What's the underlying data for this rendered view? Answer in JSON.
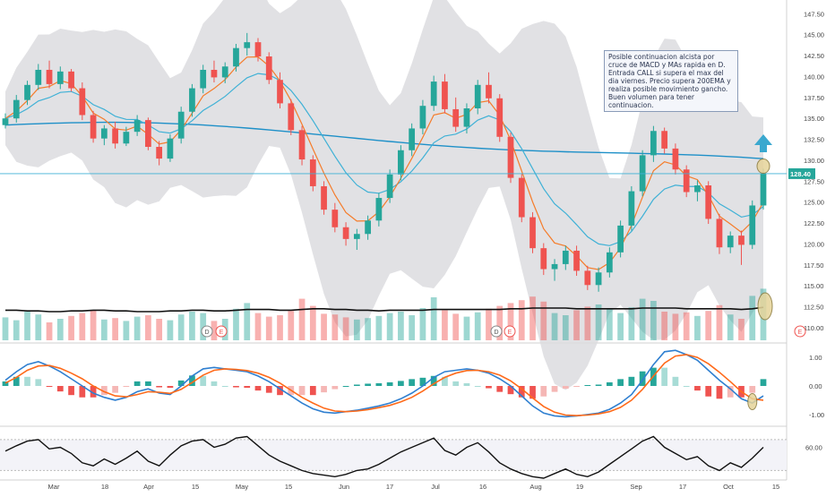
{
  "chart_data": {
    "type": "candlestick",
    "price_axis": {
      "ticks": [
        "147.50",
        "145.00",
        "142.50",
        "140.00",
        "137.50",
        "135.00",
        "132.50",
        "130.00",
        "127.50",
        "125.00",
        "122.50",
        "120.00",
        "117.50",
        "115.00",
        "112.50",
        "110.00"
      ],
      "ylim": [
        108.5,
        148.5
      ]
    },
    "last_price_label": "128.40",
    "last_price": 128.4,
    "x_labels": [
      "Mar",
      "18",
      "Apr",
      "15",
      "May",
      "15",
      "Jun",
      "17",
      "Jul",
      "16",
      "Aug",
      "19",
      "Sep",
      "17",
      "Oct",
      "15"
    ],
    "event_markers": [
      "D",
      "E",
      "D",
      "E",
      "E"
    ],
    "candles": [
      [
        134.2,
        135.6,
        133.8,
        135.0
      ],
      [
        135.0,
        137.8,
        134.5,
        137.2
      ],
      [
        137.2,
        139.5,
        136.6,
        139.0
      ],
      [
        139.0,
        141.5,
        138.4,
        140.8
      ],
      [
        140.8,
        141.9,
        138.6,
        139.1
      ],
      [
        139.1,
        141.2,
        138.5,
        140.6
      ],
      [
        140.6,
        140.9,
        138.2,
        138.6
      ],
      [
        138.6,
        139.3,
        134.8,
        135.4
      ],
      [
        135.4,
        135.9,
        132.1,
        132.6
      ],
      [
        132.6,
        134.2,
        131.8,
        133.8
      ],
      [
        133.8,
        134.6,
        131.4,
        132.0
      ],
      [
        132.0,
        134.0,
        131.7,
        133.4
      ],
      [
        133.4,
        135.4,
        132.9,
        134.8
      ],
      [
        134.8,
        135.1,
        131.2,
        131.6
      ],
      [
        131.6,
        132.3,
        129.4,
        130.2
      ],
      [
        130.2,
        133.1,
        129.8,
        132.6
      ],
      [
        132.6,
        136.4,
        132.0,
        135.8
      ],
      [
        135.8,
        139.1,
        135.2,
        138.6
      ],
      [
        138.6,
        141.4,
        138.0,
        140.8
      ],
      [
        140.8,
        141.9,
        139.3,
        139.9
      ],
      [
        139.9,
        141.7,
        139.2,
        141.2
      ],
      [
        141.2,
        143.9,
        140.6,
        143.4
      ],
      [
        143.4,
        145.2,
        142.5,
        144.1
      ],
      [
        144.1,
        144.6,
        141.8,
        142.4
      ],
      [
        142.4,
        142.9,
        139.1,
        139.6
      ],
      [
        139.6,
        140.5,
        136.2,
        136.8
      ],
      [
        136.8,
        137.3,
        133.0,
        133.6
      ],
      [
        133.6,
        134.1,
        129.4,
        130.1
      ],
      [
        130.1,
        130.6,
        126.3,
        126.9
      ],
      [
        126.9,
        127.5,
        123.5,
        124.1
      ],
      [
        124.1,
        124.9,
        121.4,
        122.0
      ],
      [
        122.0,
        122.6,
        119.8,
        120.6
      ],
      [
        120.6,
        121.8,
        119.3,
        121.2
      ],
      [
        121.2,
        123.4,
        120.5,
        122.8
      ],
      [
        122.8,
        126.1,
        122.1,
        125.5
      ],
      [
        125.5,
        128.9,
        124.9,
        128.3
      ],
      [
        128.3,
        131.8,
        127.6,
        131.2
      ],
      [
        131.2,
        134.4,
        130.5,
        133.8
      ],
      [
        133.8,
        137.2,
        133.1,
        136.5
      ],
      [
        136.5,
        140.1,
        135.9,
        139.4
      ],
      [
        139.4,
        140.3,
        135.6,
        136.1
      ],
      [
        136.1,
        137.5,
        133.4,
        134.0
      ],
      [
        134.0,
        136.8,
        133.2,
        136.2
      ],
      [
        136.2,
        139.6,
        135.5,
        139.0
      ],
      [
        139.0,
        140.5,
        136.8,
        137.4
      ],
      [
        137.4,
        137.9,
        132.2,
        132.8
      ],
      [
        132.8,
        133.3,
        127.3,
        127.9
      ],
      [
        127.9,
        128.4,
        122.6,
        123.2
      ],
      [
        123.2,
        123.8,
        118.9,
        119.5
      ],
      [
        119.5,
        120.1,
        116.3,
        117.0
      ],
      [
        117.0,
        118.2,
        115.6,
        117.6
      ],
      [
        117.6,
        119.8,
        116.9,
        119.2
      ],
      [
        119.2,
        119.8,
        116.2,
        116.8
      ],
      [
        116.8,
        117.4,
        114.5,
        115.1
      ],
      [
        115.1,
        117.2,
        114.3,
        116.6
      ],
      [
        116.6,
        119.6,
        116.0,
        119.0
      ],
      [
        119.0,
        122.8,
        118.4,
        122.2
      ],
      [
        122.2,
        126.9,
        121.6,
        126.3
      ],
      [
        126.3,
        131.2,
        125.7,
        130.6
      ],
      [
        130.6,
        134.1,
        129.8,
        133.5
      ],
      [
        133.5,
        133.9,
        130.8,
        131.4
      ],
      [
        131.4,
        132.0,
        128.3,
        128.9
      ],
      [
        128.9,
        129.4,
        125.6,
        126.2
      ],
      [
        126.2,
        127.6,
        125.1,
        127.0
      ],
      [
        127.0,
        127.5,
        122.4,
        123.0
      ],
      [
        123.0,
        123.6,
        118.8,
        119.6
      ],
      [
        119.6,
        121.5,
        118.9,
        121.0
      ],
      [
        121.0,
        121.6,
        117.5,
        119.9
      ],
      [
        119.9,
        125.2,
        119.4,
        124.6
      ],
      [
        124.6,
        129.0,
        124.1,
        128.4
      ]
    ],
    "volume_ylim": [
      0,
      100
    ],
    "volume": [
      32,
      28,
      40,
      36,
      25,
      30,
      34,
      38,
      42,
      29,
      31,
      27,
      33,
      35,
      30,
      28,
      36,
      40,
      38,
      27,
      30,
      44,
      52,
      38,
      33,
      35,
      41,
      58,
      48,
      37,
      36,
      32,
      29,
      31,
      34,
      38,
      40,
      35,
      45,
      60,
      42,
      37,
      33,
      39,
      44,
      48,
      52,
      56,
      61,
      54,
      38,
      35,
      42,
      47,
      50,
      44,
      38,
      46,
      58,
      55,
      40,
      37,
      39,
      34,
      41,
      49,
      36,
      30,
      62,
      72
    ],
    "volume_ma": [
      42,
      42,
      41,
      41,
      40,
      40,
      41,
      41,
      42,
      42,
      41,
      41,
      40,
      40,
      40,
      41,
      41,
      42,
      42,
      41,
      41,
      42,
      43,
      43,
      43,
      42,
      42,
      43,
      44,
      44,
      43,
      43,
      42,
      42,
      41,
      42,
      42,
      42,
      42,
      43,
      43,
      43,
      43,
      43,
      43,
      43,
      44,
      44,
      45,
      45,
      45,
      45,
      44,
      44,
      44,
      44,
      44,
      44,
      45,
      45,
      45,
      45,
      44,
      44,
      44,
      44,
      44,
      43,
      44,
      46
    ],
    "macd_axis": {
      "ticks": [
        "1.00",
        "0.00",
        "-1.00"
      ],
      "ylim": [
        -1.35,
        1.35
      ]
    },
    "macd": [
      0.2,
      0.5,
      0.75,
      0.85,
      0.7,
      0.5,
      0.25,
      0.0,
      -0.25,
      -0.4,
      -0.5,
      -0.4,
      -0.2,
      -0.1,
      -0.25,
      -0.3,
      0.0,
      0.35,
      0.6,
      0.65,
      0.6,
      0.55,
      0.5,
      0.35,
      0.15,
      -0.1,
      -0.35,
      -0.6,
      -0.8,
      -0.92,
      -0.95,
      -0.9,
      -0.85,
      -0.78,
      -0.7,
      -0.6,
      -0.45,
      -0.25,
      0.0,
      0.3,
      0.5,
      0.55,
      0.6,
      0.55,
      0.45,
      0.25,
      0.0,
      -0.35,
      -0.7,
      -0.95,
      -1.05,
      -1.08,
      -1.05,
      -1.0,
      -0.95,
      -0.82,
      -0.6,
      -0.3,
      0.2,
      0.75,
      1.2,
      1.25,
      1.1,
      0.9,
      0.55,
      0.2,
      -0.1,
      -0.45,
      -0.6,
      -0.35
    ],
    "macd_signal": [
      0.1,
      0.3,
      0.55,
      0.7,
      0.72,
      0.62,
      0.45,
      0.25,
      0.0,
      -0.2,
      -0.35,
      -0.38,
      -0.3,
      -0.2,
      -0.22,
      -0.26,
      -0.12,
      0.12,
      0.38,
      0.55,
      0.6,
      0.58,
      0.54,
      0.45,
      0.3,
      0.1,
      -0.15,
      -0.4,
      -0.6,
      -0.78,
      -0.88,
      -0.9,
      -0.88,
      -0.83,
      -0.76,
      -0.68,
      -0.56,
      -0.4,
      -0.18,
      0.08,
      0.3,
      0.45,
      0.54,
      0.55,
      0.5,
      0.38,
      0.18,
      -0.1,
      -0.42,
      -0.72,
      -0.92,
      -1.02,
      -1.04,
      -1.02,
      -0.98,
      -0.9,
      -0.75,
      -0.5,
      -0.12,
      0.35,
      0.8,
      1.05,
      1.1,
      1.0,
      0.78,
      0.48,
      0.15,
      -0.2,
      -0.45,
      -0.5
    ],
    "rsi_axis": {
      "ticks": [
        "60.00"
      ],
      "ylim": [
        20,
        85
      ]
    },
    "rsi": [
      55,
      62,
      68,
      70,
      58,
      60,
      52,
      40,
      36,
      45,
      38,
      46,
      55,
      42,
      36,
      50,
      62,
      68,
      70,
      60,
      64,
      72,
      74,
      62,
      50,
      42,
      36,
      30,
      26,
      24,
      22,
      25,
      30,
      32,
      38,
      46,
      54,
      60,
      66,
      72,
      56,
      50,
      60,
      66,
      54,
      40,
      32,
      26,
      22,
      20,
      26,
      32,
      25,
      22,
      28,
      38,
      48,
      58,
      68,
      74,
      60,
      52,
      44,
      48,
      36,
      30,
      40,
      34,
      46,
      60
    ]
  },
  "annotation": {
    "text": "Posible continuacion alcista por cruce de MACD y MAs rapida en D. Entrada CALL si supera el max del dia viernes. Precio supera 200EMA y realiza posible movimiento gancho. Buen volumen para tener continuacion."
  },
  "colors": {
    "up": "#26a69a",
    "down": "#ef5350",
    "ema_fast": "#f57c2a",
    "ema_slow": "#3fb1d6",
    "ema_200": "#1e90c8",
    "bands": "#dcdcdf",
    "arrow": "#3aa8cf",
    "highlight_fill": "#e6d49a",
    "highlight_stroke": "#8b7a3a",
    "macd_line": "#2f7fd0",
    "signal_line": "#ff6a1a"
  }
}
